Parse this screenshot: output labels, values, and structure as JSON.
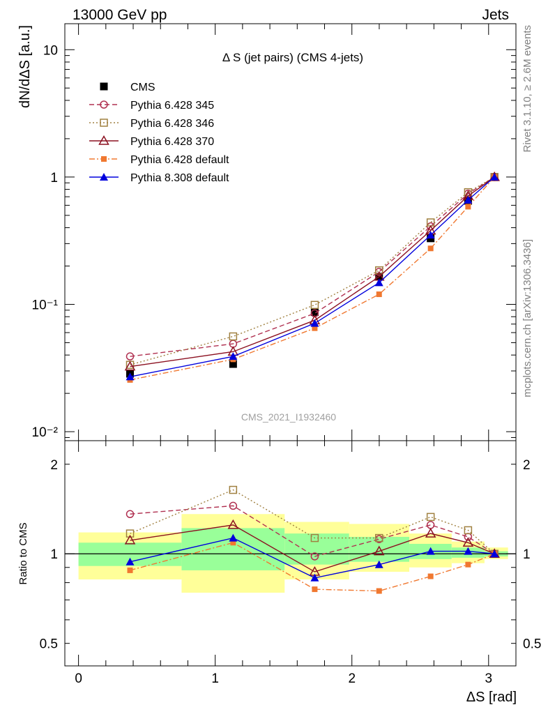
{
  "header": {
    "left": "13000 GeV pp",
    "right": "Jets"
  },
  "side_labels": {
    "top": "Rivet 3.1.10, ≥ 2.6M events",
    "bottom": "mcplots.cern.ch [arXiv:1306.3436]"
  },
  "chart_data": [
    {
      "panel": "main",
      "type": "line",
      "title": "Δ S (jet pairs) (CMS 4-jets)",
      "watermark": "CMS_2021_I1932460",
      "ylabel": "dN/dΔS [a.u.]",
      "yscale": "log",
      "ylim": [
        0.0085,
        16
      ],
      "xlim": [
        -0.1,
        3.2
      ],
      "yticks": [
        {
          "value": 10,
          "label": "10"
        },
        {
          "value": 1,
          "label": "1"
        },
        {
          "value": 0.1,
          "label": "10⁻¹"
        },
        {
          "value": 0.01,
          "label": "10⁻²"
        }
      ],
      "x": [
        0.377,
        1.131,
        1.728,
        2.199,
        2.576,
        2.85,
        3.043
      ],
      "series": [
        {
          "name": "CMS",
          "color": "#000000",
          "marker": "square",
          "line": "none",
          "values": [
            0.0285,
            0.034,
            0.087,
            0.165,
            0.33,
            0.65,
            1.0
          ]
        },
        {
          "name": "Pythia 6.428 345",
          "color": "#b03050",
          "marker": "circle-open",
          "line": "dashed",
          "values": [
            0.039,
            0.049,
            0.085,
            0.18,
            0.41,
            0.74,
            1.0
          ]
        },
        {
          "name": "Pythia 6.428 346",
          "color": "#a08040",
          "marker": "square-open",
          "line": "dotted",
          "values": [
            0.0335,
            0.056,
            0.099,
            0.185,
            0.44,
            0.76,
            1.0
          ]
        },
        {
          "name": "Pythia 6.428 370",
          "color": "#8b1020",
          "marker": "triangle-open",
          "line": "solid",
          "values": [
            0.0325,
            0.0425,
            0.075,
            0.165,
            0.38,
            0.71,
            1.0
          ]
        },
        {
          "name": "Pythia 6.428 default",
          "color": "#f07830",
          "marker": "square-small",
          "line": "dashdot",
          "values": [
            0.0255,
            0.037,
            0.065,
            0.12,
            0.275,
            0.585,
            1.0
          ]
        },
        {
          "name": "Pythia 8.308 default",
          "color": "#0000dd",
          "marker": "triangle",
          "line": "solid",
          "values": [
            0.027,
            0.039,
            0.071,
            0.148,
            0.35,
            0.66,
            1.0
          ]
        }
      ]
    },
    {
      "panel": "ratio",
      "type": "line",
      "ylabel": "Ratio to CMS",
      "xlabel": "ΔS [rad]",
      "yscale": "log",
      "ylim": [
        0.42,
        2.4
      ],
      "xlim": [
        -0.1,
        3.2
      ],
      "yticks": [
        {
          "value": 2,
          "label": "2"
        },
        {
          "value": 1,
          "label": "1"
        },
        {
          "value": 0.5,
          "label": "0.5"
        }
      ],
      "xticks": [
        {
          "value": 0,
          "label": "0"
        },
        {
          "value": 1,
          "label": "1"
        },
        {
          "value": 2,
          "label": "2"
        },
        {
          "value": 3,
          "label": "3"
        }
      ],
      "bands": [
        {
          "x0": 0.0,
          "x1": 0.754,
          "y_lo": 0.82,
          "y_hi": 1.18,
          "in_lo": 0.91,
          "in_hi": 1.09
        },
        {
          "x0": 0.754,
          "x1": 1.508,
          "y_lo": 0.74,
          "y_hi": 1.36,
          "in_lo": 0.88,
          "in_hi": 1.22
        },
        {
          "x0": 1.508,
          "x1": 1.98,
          "y_lo": 0.82,
          "y_hi": 1.28,
          "in_lo": 0.92,
          "in_hi": 1.17
        },
        {
          "x0": 1.98,
          "x1": 2.42,
          "y_lo": 0.87,
          "y_hi": 1.26,
          "in_lo": 0.94,
          "in_hi": 1.14
        },
        {
          "x0": 2.42,
          "x1": 2.73,
          "y_lo": 0.9,
          "y_hi": 1.17,
          "in_lo": 0.96,
          "in_hi": 1.08
        },
        {
          "x0": 2.73,
          "x1": 2.97,
          "y_lo": 0.93,
          "y_hi": 1.1,
          "in_lo": 0.97,
          "in_hi": 1.05
        },
        {
          "x0": 2.97,
          "x1": 3.142,
          "y_lo": 0.96,
          "y_hi": 1.05,
          "in_lo": 0.98,
          "in_hi": 1.02
        }
      ],
      "x": [
        0.377,
        1.131,
        1.728,
        2.199,
        2.576,
        2.85,
        3.043
      ],
      "series": [
        {
          "name": "Pythia 6.428 345",
          "color": "#b03050",
          "marker": "circle-open",
          "line": "dashed",
          "values": [
            1.36,
            1.45,
            0.98,
            1.12,
            1.25,
            1.14,
            1.0
          ]
        },
        {
          "name": "Pythia 6.428 346",
          "color": "#a08040",
          "marker": "square-open",
          "line": "dotted",
          "values": [
            1.17,
            1.64,
            1.13,
            1.13,
            1.33,
            1.2,
            1.0
          ]
        },
        {
          "name": "Pythia 6.428 370",
          "color": "#8b1020",
          "marker": "triangle-open",
          "line": "solid",
          "values": [
            1.11,
            1.25,
            0.87,
            1.02,
            1.17,
            1.09,
            1.0
          ]
        },
        {
          "name": "Pythia 6.428 default",
          "color": "#f07830",
          "marker": "square-small",
          "line": "dashdot",
          "values": [
            0.88,
            1.09,
            0.76,
            0.75,
            0.84,
            0.92,
            1.0
          ]
        },
        {
          "name": "Pythia 8.308 default",
          "color": "#0000dd",
          "marker": "triangle",
          "line": "solid",
          "values": [
            0.94,
            1.13,
            0.83,
            0.92,
            1.02,
            1.02,
            1.0
          ]
        }
      ]
    }
  ]
}
